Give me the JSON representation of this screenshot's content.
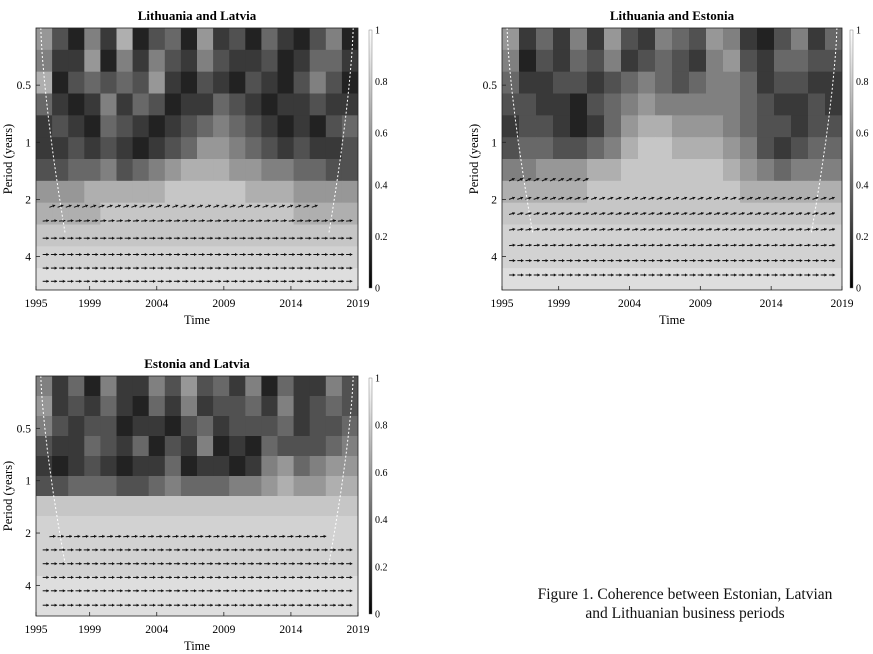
{
  "chart_data": [
    {
      "type": "heatmap",
      "subtype": "wavelet-coherence",
      "title": "Lithuania and Latvia",
      "xlabel": "Time",
      "ylabel": "Period (years)",
      "x_ticks": [
        1995,
        1999,
        2004,
        2009,
        2014,
        2019
      ],
      "y_ticks": [
        0.5,
        1,
        2,
        4
      ],
      "xlim": [
        1995,
        2019
      ],
      "y_scale": "log2",
      "ylim": [
        0.25,
        6
      ],
      "colorbar": {
        "ticks": [
          0,
          0.2,
          0.4,
          0.6,
          0.8,
          1
        ],
        "range": [
          0,
          1
        ],
        "colormap": "gray"
      },
      "cone_of_influence": true,
      "coherence_rows": [
        [
          0.6,
          0.3,
          0.1,
          0.5,
          0.2,
          0.7,
          0.1,
          0.3,
          0.4,
          0.1,
          0.6,
          0.2,
          0.3,
          0.1,
          0.4,
          0.2,
          0.1,
          0.3,
          0.5,
          0.1
        ],
        [
          0.5,
          0.2,
          0.2,
          0.6,
          0.1,
          0.5,
          0.2,
          0.5,
          0.3,
          0.2,
          0.5,
          0.3,
          0.2,
          0.2,
          0.3,
          0.1,
          0.2,
          0.4,
          0.4,
          0.2
        ],
        [
          0.7,
          0.1,
          0.3,
          0.4,
          0.3,
          0.4,
          0.3,
          0.6,
          0.2,
          0.1,
          0.3,
          0.2,
          0.1,
          0.3,
          0.2,
          0.1,
          0.3,
          0.5,
          0.3,
          0.1
        ],
        [
          0.4,
          0.2,
          0.1,
          0.2,
          0.5,
          0.2,
          0.4,
          0.3,
          0.1,
          0.2,
          0.2,
          0.4,
          0.3,
          0.2,
          0.1,
          0.2,
          0.2,
          0.3,
          0.2,
          0.2
        ],
        [
          0.2,
          0.3,
          0.2,
          0.1,
          0.4,
          0.3,
          0.2,
          0.1,
          0.2,
          0.3,
          0.4,
          0.5,
          0.4,
          0.3,
          0.2,
          0.1,
          0.2,
          0.1,
          0.3,
          0.4
        ],
        [
          0.2,
          0.2,
          0.3,
          0.2,
          0.3,
          0.2,
          0.1,
          0.2,
          0.3,
          0.4,
          0.6,
          0.6,
          0.5,
          0.4,
          0.3,
          0.2,
          0.3,
          0.2,
          0.2,
          0.3
        ],
        [
          0.3,
          0.3,
          0.4,
          0.4,
          0.5,
          0.3,
          0.4,
          0.5,
          0.6,
          0.7,
          0.7,
          0.7,
          0.6,
          0.6,
          0.5,
          0.5,
          0.4,
          0.4,
          0.3,
          0.3
        ],
        [
          0.6,
          0.6,
          0.6,
          0.7,
          0.7,
          0.7,
          0.7,
          0.7,
          0.8,
          0.8,
          0.8,
          0.8,
          0.8,
          0.7,
          0.7,
          0.7,
          0.6,
          0.6,
          0.6,
          0.6
        ],
        [
          0.7,
          0.7,
          0.7,
          0.7,
          0.8,
          0.8,
          0.8,
          0.8,
          0.8,
          0.8,
          0.8,
          0.8,
          0.8,
          0.8,
          0.8,
          0.8,
          0.7,
          0.7,
          0.7,
          0.7
        ],
        [
          0.8,
          0.8,
          0.8,
          0.8,
          0.8,
          0.8,
          0.8,
          0.8,
          0.8,
          0.8,
          0.8,
          0.8,
          0.8,
          0.8,
          0.8,
          0.8,
          0.8,
          0.8,
          0.8,
          0.8
        ],
        [
          0.85,
          0.85,
          0.85,
          0.85,
          0.85,
          0.85,
          0.85,
          0.85,
          0.85,
          0.85,
          0.85,
          0.85,
          0.85,
          0.85,
          0.85,
          0.85,
          0.85,
          0.85,
          0.85,
          0.85
        ],
        [
          0.9,
          0.9,
          0.9,
          0.9,
          0.9,
          0.9,
          0.9,
          0.9,
          0.9,
          0.9,
          0.9,
          0.9,
          0.9,
          0.9,
          0.9,
          0.9,
          0.9,
          0.9,
          0.9,
          0.9
        ]
      ],
      "arrow_rows": [
        {
          "period": 2.2,
          "from": 1996,
          "to": 2016,
          "angle": -20
        },
        {
          "period": 2.6,
          "from": 1995.5,
          "to": 2018.5,
          "angle": -5
        },
        {
          "period": 3.2,
          "from": 1995.5,
          "to": 2018.5,
          "angle": 0
        },
        {
          "period": 3.9,
          "from": 1995.5,
          "to": 2018.5,
          "angle": 0
        },
        {
          "period": 4.6,
          "from": 1995.5,
          "to": 2018.5,
          "angle": 0
        },
        {
          "period": 5.4,
          "from": 1995.5,
          "to": 2018.5,
          "angle": 0
        }
      ]
    },
    {
      "type": "heatmap",
      "subtype": "wavelet-coherence",
      "title": "Lithuania and Estonia",
      "xlabel": "Time",
      "ylabel": "Period (years)",
      "x_ticks": [
        1995,
        1999,
        2004,
        2009,
        2014,
        2019
      ],
      "y_ticks": [
        0.5,
        1,
        2,
        4
      ],
      "xlim": [
        1995,
        2019
      ],
      "y_scale": "log2",
      "ylim": [
        0.25,
        6
      ],
      "colorbar": {
        "ticks": [
          0,
          0.2,
          0.4,
          0.6,
          0.8,
          1
        ],
        "range": [
          0,
          1
        ],
        "colormap": "gray"
      },
      "cone_of_influence": true,
      "coherence_rows": [
        [
          0.6,
          0.2,
          0.4,
          0.2,
          0.5,
          0.2,
          0.6,
          0.3,
          0.2,
          0.5,
          0.4,
          0.3,
          0.6,
          0.5,
          0.2,
          0.1,
          0.3,
          0.5,
          0.2,
          0.4
        ],
        [
          0.5,
          0.1,
          0.3,
          0.2,
          0.4,
          0.3,
          0.5,
          0.2,
          0.3,
          0.4,
          0.3,
          0.2,
          0.5,
          0.6,
          0.3,
          0.2,
          0.4,
          0.4,
          0.3,
          0.3
        ],
        [
          0.4,
          0.2,
          0.2,
          0.3,
          0.3,
          0.2,
          0.3,
          0.4,
          0.5,
          0.4,
          0.3,
          0.4,
          0.5,
          0.5,
          0.4,
          0.2,
          0.3,
          0.3,
          0.2,
          0.2
        ],
        [
          0.3,
          0.3,
          0.2,
          0.2,
          0.1,
          0.3,
          0.4,
          0.5,
          0.6,
          0.5,
          0.5,
          0.5,
          0.5,
          0.5,
          0.4,
          0.3,
          0.2,
          0.2,
          0.3,
          0.2
        ],
        [
          0.2,
          0.3,
          0.3,
          0.2,
          0.1,
          0.2,
          0.4,
          0.6,
          0.7,
          0.7,
          0.6,
          0.6,
          0.6,
          0.5,
          0.4,
          0.3,
          0.3,
          0.2,
          0.3,
          0.3
        ],
        [
          0.3,
          0.4,
          0.4,
          0.3,
          0.3,
          0.4,
          0.5,
          0.7,
          0.8,
          0.8,
          0.7,
          0.7,
          0.7,
          0.6,
          0.5,
          0.3,
          0.2,
          0.3,
          0.4,
          0.4
        ],
        [
          0.5,
          0.5,
          0.6,
          0.6,
          0.6,
          0.7,
          0.7,
          0.8,
          0.8,
          0.8,
          0.8,
          0.8,
          0.8,
          0.7,
          0.6,
          0.5,
          0.4,
          0.5,
          0.5,
          0.5
        ],
        [
          0.7,
          0.7,
          0.7,
          0.7,
          0.7,
          0.8,
          0.8,
          0.8,
          0.8,
          0.8,
          0.8,
          0.8,
          0.8,
          0.8,
          0.7,
          0.7,
          0.7,
          0.7,
          0.7,
          0.7
        ],
        [
          0.8,
          0.8,
          0.8,
          0.8,
          0.8,
          0.8,
          0.8,
          0.8,
          0.8,
          0.8,
          0.8,
          0.8,
          0.8,
          0.8,
          0.8,
          0.8,
          0.8,
          0.8,
          0.8,
          0.8
        ],
        [
          0.85,
          0.85,
          0.85,
          0.85,
          0.85,
          0.85,
          0.85,
          0.85,
          0.85,
          0.85,
          0.85,
          0.85,
          0.85,
          0.85,
          0.85,
          0.85,
          0.85,
          0.85,
          0.85,
          0.85
        ],
        [
          0.85,
          0.85,
          0.85,
          0.85,
          0.85,
          0.85,
          0.85,
          0.85,
          0.85,
          0.85,
          0.85,
          0.85,
          0.85,
          0.85,
          0.85,
          0.85,
          0.85,
          0.85,
          0.85,
          0.85
        ],
        [
          0.9,
          0.9,
          0.9,
          0.9,
          0.9,
          0.9,
          0.9,
          0.9,
          0.9,
          0.9,
          0.9,
          0.9,
          0.9,
          0.9,
          0.9,
          0.9,
          0.9,
          0.9,
          0.9,
          0.9
        ]
      ],
      "arrow_rows": [
        {
          "period": 1.6,
          "from": 1995.5,
          "to": 2001,
          "angle": -25
        },
        {
          "period": 2.0,
          "from": 1995.5,
          "to": 2018.5,
          "angle": -20
        },
        {
          "period": 2.4,
          "from": 1995.5,
          "to": 2018.5,
          "angle": -15
        },
        {
          "period": 2.9,
          "from": 1995.5,
          "to": 2018.5,
          "angle": -10
        },
        {
          "period": 3.5,
          "from": 1995.5,
          "to": 2018.5,
          "angle": -5
        },
        {
          "period": 4.2,
          "from": 1995.5,
          "to": 2018.5,
          "angle": 0
        },
        {
          "period": 5.0,
          "from": 1995.5,
          "to": 2018.5,
          "angle": 0
        }
      ]
    },
    {
      "type": "heatmap",
      "subtype": "wavelet-coherence",
      "title": "Estonia and Latvia",
      "xlabel": "Time",
      "ylabel": "Period (years)",
      "x_ticks": [
        1995,
        1999,
        2004,
        2009,
        2014,
        2019
      ],
      "y_ticks": [
        0.5,
        1,
        2,
        4
      ],
      "xlim": [
        1995,
        2019
      ],
      "y_scale": "log2",
      "ylim": [
        0.25,
        6
      ],
      "colorbar": {
        "ticks": [
          0,
          0.2,
          0.4,
          0.6,
          0.8,
          1
        ],
        "range": [
          0,
          1
        ],
        "colormap": "gray"
      },
      "cone_of_influence": true,
      "coherence_rows": [
        [
          0.5,
          0.2,
          0.4,
          0.1,
          0.5,
          0.2,
          0.2,
          0.5,
          0.3,
          0.6,
          0.3,
          0.4,
          0.2,
          0.5,
          0.1,
          0.4,
          0.2,
          0.2,
          0.5,
          0.3
        ],
        [
          0.6,
          0.2,
          0.3,
          0.2,
          0.4,
          0.2,
          0.1,
          0.4,
          0.2,
          0.5,
          0.2,
          0.3,
          0.3,
          0.4,
          0.2,
          0.5,
          0.2,
          0.3,
          0.4,
          0.3
        ],
        [
          0.5,
          0.3,
          0.2,
          0.3,
          0.3,
          0.1,
          0.2,
          0.2,
          0.1,
          0.3,
          0.4,
          0.2,
          0.3,
          0.3,
          0.3,
          0.4,
          0.2,
          0.3,
          0.3,
          0.4
        ],
        [
          0.3,
          0.2,
          0.2,
          0.4,
          0.3,
          0.2,
          0.4,
          0.1,
          0.3,
          0.2,
          0.5,
          0.1,
          0.2,
          0.1,
          0.4,
          0.3,
          0.3,
          0.3,
          0.4,
          0.5
        ],
        [
          0.2,
          0.1,
          0.2,
          0.3,
          0.2,
          0.1,
          0.2,
          0.2,
          0.4,
          0.1,
          0.2,
          0.2,
          0.1,
          0.2,
          0.5,
          0.6,
          0.4,
          0.5,
          0.6,
          0.6
        ],
        [
          0.3,
          0.3,
          0.4,
          0.4,
          0.4,
          0.3,
          0.3,
          0.4,
          0.5,
          0.4,
          0.4,
          0.4,
          0.5,
          0.5,
          0.6,
          0.7,
          0.6,
          0.6,
          0.7,
          0.7
        ],
        [
          0.8,
          0.8,
          0.8,
          0.8,
          0.8,
          0.8,
          0.8,
          0.8,
          0.8,
          0.8,
          0.8,
          0.8,
          0.8,
          0.8,
          0.8,
          0.8,
          0.8,
          0.8,
          0.8,
          0.8
        ],
        [
          0.85,
          0.85,
          0.85,
          0.85,
          0.85,
          0.85,
          0.85,
          0.85,
          0.85,
          0.85,
          0.85,
          0.85,
          0.85,
          0.85,
          0.85,
          0.85,
          0.85,
          0.85,
          0.85,
          0.85
        ],
        [
          0.85,
          0.85,
          0.85,
          0.85,
          0.85,
          0.85,
          0.85,
          0.85,
          0.85,
          0.85,
          0.85,
          0.85,
          0.85,
          0.85,
          0.85,
          0.85,
          0.85,
          0.85,
          0.85,
          0.85
        ],
        [
          0.85,
          0.85,
          0.85,
          0.85,
          0.85,
          0.85,
          0.85,
          0.85,
          0.85,
          0.85,
          0.85,
          0.85,
          0.85,
          0.85,
          0.85,
          0.85,
          0.85,
          0.85,
          0.85,
          0.85
        ],
        [
          0.9,
          0.9,
          0.9,
          0.9,
          0.9,
          0.9,
          0.9,
          0.9,
          0.9,
          0.9,
          0.9,
          0.9,
          0.9,
          0.9,
          0.9,
          0.9,
          0.9,
          0.9,
          0.9,
          0.9
        ],
        [
          0.9,
          0.9,
          0.9,
          0.9,
          0.9,
          0.9,
          0.9,
          0.9,
          0.9,
          0.9,
          0.9,
          0.9,
          0.9,
          0.9,
          0.9,
          0.9,
          0.9,
          0.9,
          0.9,
          0.9
        ]
      ],
      "arrow_rows": [
        {
          "period": 2.1,
          "from": 1996,
          "to": 2016.5,
          "angle": -5
        },
        {
          "period": 2.5,
          "from": 1995.5,
          "to": 2018.5,
          "angle": 0
        },
        {
          "period": 3.0,
          "from": 1995.5,
          "to": 2018.5,
          "angle": 0
        },
        {
          "period": 3.6,
          "from": 1995.5,
          "to": 2018.5,
          "angle": 0
        },
        {
          "period": 4.3,
          "from": 1995.5,
          "to": 2018.5,
          "angle": 0
        },
        {
          "period": 5.2,
          "from": 1995.5,
          "to": 2018.5,
          "angle": 0
        }
      ]
    }
  ],
  "caption": {
    "line1": "Figure 1. Coherence between Estonian, Latvian",
    "line2": "and Lithuanian business periods"
  }
}
